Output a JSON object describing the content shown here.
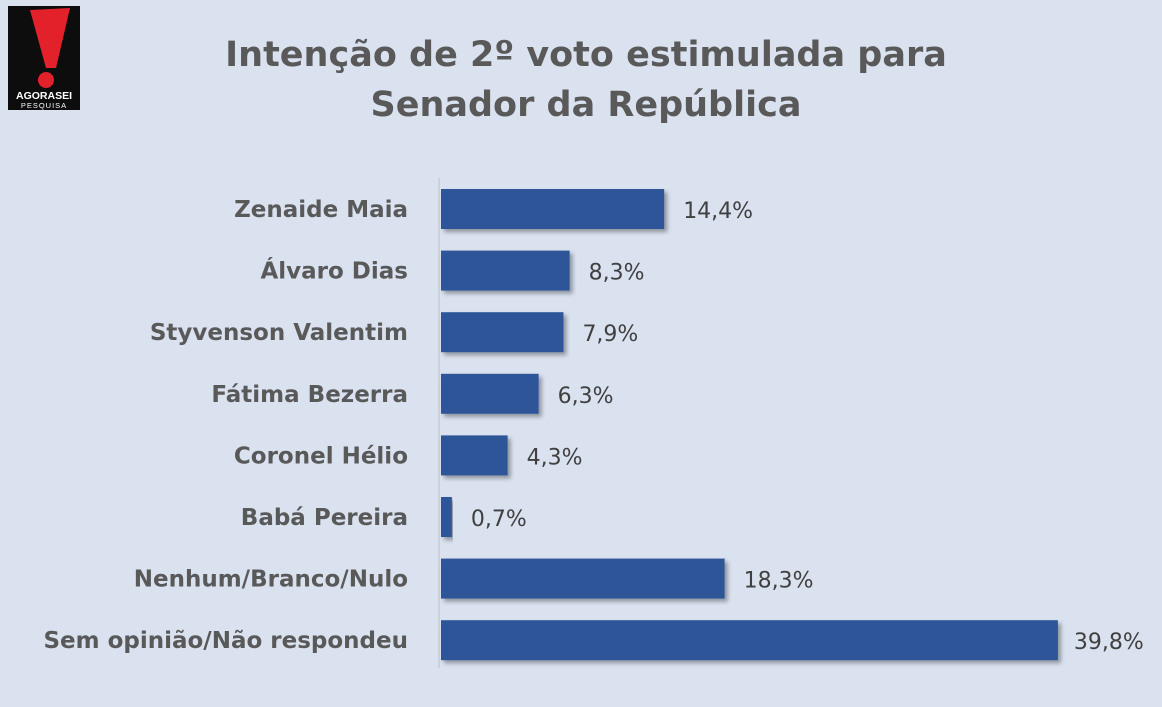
{
  "logo": {
    "brand": "AGORASEI",
    "sub": "PESQUISA",
    "colors": {
      "bg": "#0d0d0d",
      "mark": "#e3212b",
      "text": "#ffffff"
    }
  },
  "title": {
    "line1": "Intenção de 2º voto estimulada para",
    "line2": "Senador da República"
  },
  "chart_data": {
    "type": "bar",
    "orientation": "horizontal",
    "categories": [
      "Zenaide Maia",
      "Álvaro Dias",
      "Styvenson Valentim",
      "Fátima Bezerra",
      "Coronel Hélio",
      "Babá Pereira",
      "Nenhum/Branco/Nulo",
      "Sem opinião/Não respondeu"
    ],
    "values": [
      14.4,
      8.3,
      7.9,
      6.3,
      4.3,
      0.7,
      18.3,
      39.8
    ],
    "value_labels": [
      "14,4%",
      "8,3%",
      "7,9%",
      "6,3%",
      "4,3%",
      "0,7%",
      "18,3%",
      "39,8%"
    ],
    "bar_color": "#2f5597",
    "grid": false,
    "legend": "none"
  }
}
